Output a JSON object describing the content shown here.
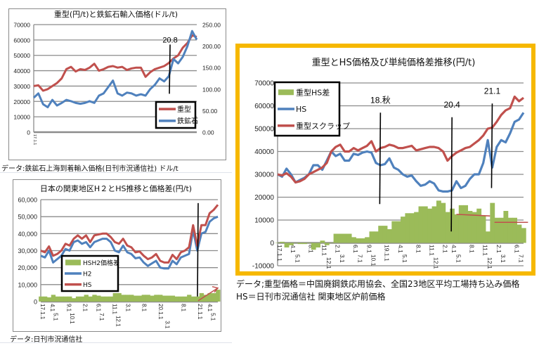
{
  "chart_data": [
    {
      "type": "line",
      "title": "重型(円/t)と鉄鉱石輸入価格(ドル/t)",
      "caption": "データ:鉄鉱石上海到着輸入価格(日刊市況通信社)  ドル/t",
      "xlim_months_from_2017_01": [
        0,
        55
      ],
      "ylim_left": [
        0,
        70000
      ],
      "ylim_right": [
        0,
        250
      ],
      "yticks_left": [
        "0",
        "10000",
        "20000",
        "30000",
        "40000",
        "50000",
        "60000",
        "70000"
      ],
      "yticks_right": [
        "0.00",
        "50.00",
        "100.00",
        "150.00",
        "200.00",
        "250.00"
      ],
      "xticks": [
        {
          "label": "17.1.1",
          "month": 0
        }
      ],
      "legend_placement": "bottom-right",
      "annotations": [
        {
          "label": "20.8",
          "month": 46,
          "from": 57000,
          "to": 25000
        }
      ],
      "series": [
        {
          "name": "重型",
          "axis": "left",
          "color": "#c0504d",
          "values": [
            30000,
            30500,
            27000,
            28000,
            30000,
            32000,
            35000,
            41000,
            42500,
            39500,
            41000,
            40500,
            42000,
            44500,
            40000,
            41000,
            42500,
            43000,
            42000,
            42500,
            40500,
            41500,
            42000,
            42000,
            36000,
            39000,
            41000,
            42000,
            43000,
            45000,
            48000,
            50000,
            55000,
            58000,
            63000,
            62000
          ]
        },
        {
          "name": "鉄鉱石",
          "axis": "right",
          "color": "#4f81bd",
          "values": [
            80,
            90,
            65,
            58,
            75,
            62,
            68,
            75,
            72,
            68,
            66,
            68,
            72,
            68,
            85,
            90,
            105,
            120,
            90,
            85,
            92,
            90,
            85,
            88,
            85,
            100,
            110,
            125,
            118,
            130,
            170,
            160,
            175,
            200,
            235,
            215
          ]
        }
      ]
    },
    {
      "type": "line",
      "title": "日本の関東地区H２とHS推移と価格差(円/t)",
      "caption": "データ:日刊市況通信社",
      "xlim_months_from_2017_01": [
        0,
        54
      ],
      "ylim": [
        0,
        60000
      ],
      "yticks": [
        "0",
        "10,000",
        "20,000",
        "30,000",
        "40,000",
        "50,000",
        "60,000"
      ],
      "xticks": [
        {
          "label": "17.1.1",
          "month": 0
        },
        {
          "label": "4.1",
          "month": 3
        },
        {
          "label": "5.1",
          "month": 4
        },
        {
          "label": "9.1",
          "month": 8
        },
        {
          "label": "10.1",
          "month": 9
        },
        {
          "label": "2.1",
          "month": 13
        },
        {
          "label": "6.1",
          "month": 17
        },
        {
          "label": "7.1",
          "month": 18
        },
        {
          "label": "11.1",
          "month": 22
        },
        {
          "label": "12.1",
          "month": 23
        },
        {
          "label": "3.1",
          "month": 26
        },
        {
          "label": "8.1",
          "month": 31
        },
        {
          "label": "20.1.1",
          "month": 36
        },
        {
          "label": "3.1",
          "month": 38
        },
        {
          "label": "8.1",
          "month": 43
        },
        {
          "label": "21.1.1",
          "month": 48
        },
        {
          "label": "4.1",
          "month": 51
        },
        {
          "label": "5.1",
          "month": 52
        }
      ],
      "legend_placement": "center-left",
      "annotations": [
        {
          "label": "",
          "month": 48,
          "from": 58000,
          "to": 3000
        }
      ],
      "trend_arrow": {
        "from_month": 48,
        "from_value": 500,
        "to_month": 54,
        "to_value": 8000
      },
      "series": [
        {
          "name": "HSH2価格差",
          "kind": "bar",
          "color": "#9bbb59",
          "values": [
            3000,
            3000,
            2500,
            4000,
            3000,
            3000,
            3000,
            3000,
            2000,
            3000,
            3000,
            4000,
            3000,
            4000,
            3500,
            3000,
            3000,
            3000,
            5000,
            5000,
            4000,
            4000,
            4000,
            3500,
            3500,
            4000,
            4000,
            3500,
            4000,
            4000,
            3500,
            3500,
            3500,
            3000,
            3000,
            3000,
            4000,
            3000,
            3000,
            5000,
            4000,
            5000,
            5000,
            7000
          ]
        },
        {
          "name": "H2",
          "kind": "line",
          "color": "#4f81bd",
          "values": [
            27000,
            26000,
            30000,
            23000,
            25000,
            27000,
            31000,
            30000,
            35000,
            36000,
            34000,
            35000,
            32000,
            35000,
            36000,
            37000,
            37000,
            35000,
            30000,
            29000,
            33000,
            29000,
            28000,
            25500,
            26000,
            23000,
            21000,
            22500,
            24000,
            20000,
            19500,
            19500,
            24000,
            22000,
            26000,
            27000,
            28000,
            42000,
            30000,
            40000,
            41000,
            47000,
            49000,
            50000
          ]
        },
        {
          "name": "HS",
          "kind": "line",
          "color": "#c0504d",
          "values": [
            30000,
            29000,
            32500,
            27000,
            28000,
            30000,
            34000,
            33000,
            37000,
            39000,
            37000,
            39000,
            35000,
            39000,
            39500,
            40000,
            40000,
            38000,
            35000,
            34000,
            37000,
            33000,
            32000,
            29000,
            29500,
            27000,
            25000,
            26000,
            28000,
            24000,
            23000,
            23000,
            27500,
            25000,
            29000,
            30000,
            32000,
            45000,
            33000,
            45000,
            45000,
            52000,
            54000,
            57000
          ]
        }
      ]
    },
    {
      "type": "line",
      "title": "重型とHS価格及び単純価格差推移(円/t)",
      "caption_1": "データ;重型価格＝中国廃鋼鉄応用協会、全国23地区平均工場持ち込み価格",
      "caption_2": "HS＝日刊市況通信社  関東地区炉前価格",
      "xlim_months_from_2017_01": [
        0,
        55
      ],
      "ylim": [
        -10000,
        70000
      ],
      "yticks": [
        "-10000",
        "0",
        "10000",
        "20000",
        "30000",
        "40000",
        "50000",
        "60000",
        "70000"
      ],
      "xticks": [
        {
          "label": "17.1.1",
          "month": 0
        },
        {
          "label": "4.1",
          "month": 3
        },
        {
          "label": "5.1",
          "month": 4
        },
        {
          "label": "8.1",
          "month": 7
        },
        {
          "label": "11.1",
          "month": 10
        },
        {
          "label": "12.1",
          "month": 11
        },
        {
          "label": "2.1",
          "month": 13
        },
        {
          "label": "3.1",
          "month": 14
        },
        {
          "label": "6.1",
          "month": 17
        },
        {
          "label": "7.1",
          "month": 18
        },
        {
          "label": "9.1",
          "month": 20
        },
        {
          "label": "10.1",
          "month": 21
        },
        {
          "label": "19.1.1",
          "month": 24
        },
        {
          "label": "4.1",
          "month": 27
        },
        {
          "label": "5.1",
          "month": 28
        },
        {
          "label": "8.1",
          "month": 31
        },
        {
          "label": "11.1",
          "month": 34
        },
        {
          "label": "12.1",
          "month": 35
        },
        {
          "label": "2.1",
          "month": 37
        },
        {
          "label": "4.1",
          "month": 39
        },
        {
          "label": "5.1",
          "month": 40
        },
        {
          "label": "8.1",
          "month": 43
        },
        {
          "label": "11.1",
          "month": 46
        },
        {
          "label": "12.1",
          "month": 47
        },
        {
          "label": "2.1",
          "month": 49
        },
        {
          "label": "3.1",
          "month": 50
        },
        {
          "label": "6.1",
          "month": 53
        },
        {
          "label": "7.1",
          "month": 54
        }
      ],
      "legend_placement": "top-left",
      "annotations": [
        {
          "label": "18.秋",
          "month": 23,
          "from": 57000,
          "to": 17000
        },
        {
          "label": "20.4",
          "month": 39,
          "from": 55000,
          "to": 5000
        },
        {
          "label": "21.1",
          "month": 48,
          "from": 61000,
          "to": 24000
        }
      ],
      "trend_lines": [
        {
          "from_month": 40,
          "from_value": 12500,
          "to_month": 47.5,
          "to_value": 11800
        },
        {
          "from_month": 48.5,
          "from_value": 9000,
          "to_month": 56,
          "to_value": 9000
        }
      ],
      "series": [
        {
          "name": "重型HS差",
          "kind": "bar",
          "color": "#9bbb59",
          "values": [
            0,
            500,
            -2000,
            -1000,
            0,
            -500,
            -500,
            0,
            -3000,
            -2000,
            1000,
            -1000,
            0,
            4000,
            4000,
            4000,
            4000,
            2500,
            2000,
            2000,
            2500,
            5000,
            5000,
            7500,
            7500,
            6000,
            9500,
            9500,
            11500,
            13000,
            13000,
            13500,
            16000,
            16000,
            15000,
            16000,
            18500,
            17500,
            13500,
            15000,
            12500,
            16500,
            16500,
            14000,
            13500,
            15000,
            12000,
            5000,
            17500,
            11000,
            11000,
            14000,
            11000,
            11000,
            8000,
            6500
          ]
        },
        {
          "name": "HS",
          "kind": "line",
          "color": "#4f81bd",
          "values": [
            30000,
            29000,
            32500,
            30000,
            26500,
            27500,
            28500,
            30000,
            34000,
            34000,
            32000,
            36000,
            40000,
            38000,
            39000,
            36000,
            36000,
            39000,
            38500,
            39500,
            40000,
            39500,
            35000,
            34000,
            34500,
            37000,
            33000,
            32000,
            30000,
            29000,
            29500,
            27000,
            25000,
            25500,
            27000,
            26000,
            23000,
            22500,
            22500,
            23000,
            27000,
            24000,
            25000,
            28000,
            30000,
            30000,
            35000,
            45000,
            33000,
            42000,
            45000,
            44000,
            48000,
            53000,
            54000,
            57000
          ]
        },
        {
          "name": "重型スクラップ",
          "kind": "line",
          "color": "#c0504d",
          "values": [
            30000,
            29500,
            30500,
            29000,
            26500,
            27000,
            28000,
            30000,
            31000,
            32000,
            33000,
            35000,
            40000,
            42000,
            43000,
            40000,
            40000,
            41500,
            40500,
            41500,
            42500,
            44500,
            40000,
            41500,
            42000,
            43000,
            42500,
            41500,
            41500,
            42000,
            42500,
            40500,
            41000,
            41500,
            42000,
            42000,
            41500,
            40000,
            36000,
            38000,
            39500,
            40500,
            41500,
            42000,
            43500,
            45000,
            47000,
            50000,
            50500,
            53000,
            56000,
            58000,
            59000,
            64000,
            62000,
            63500
          ]
        }
      ]
    }
  ]
}
